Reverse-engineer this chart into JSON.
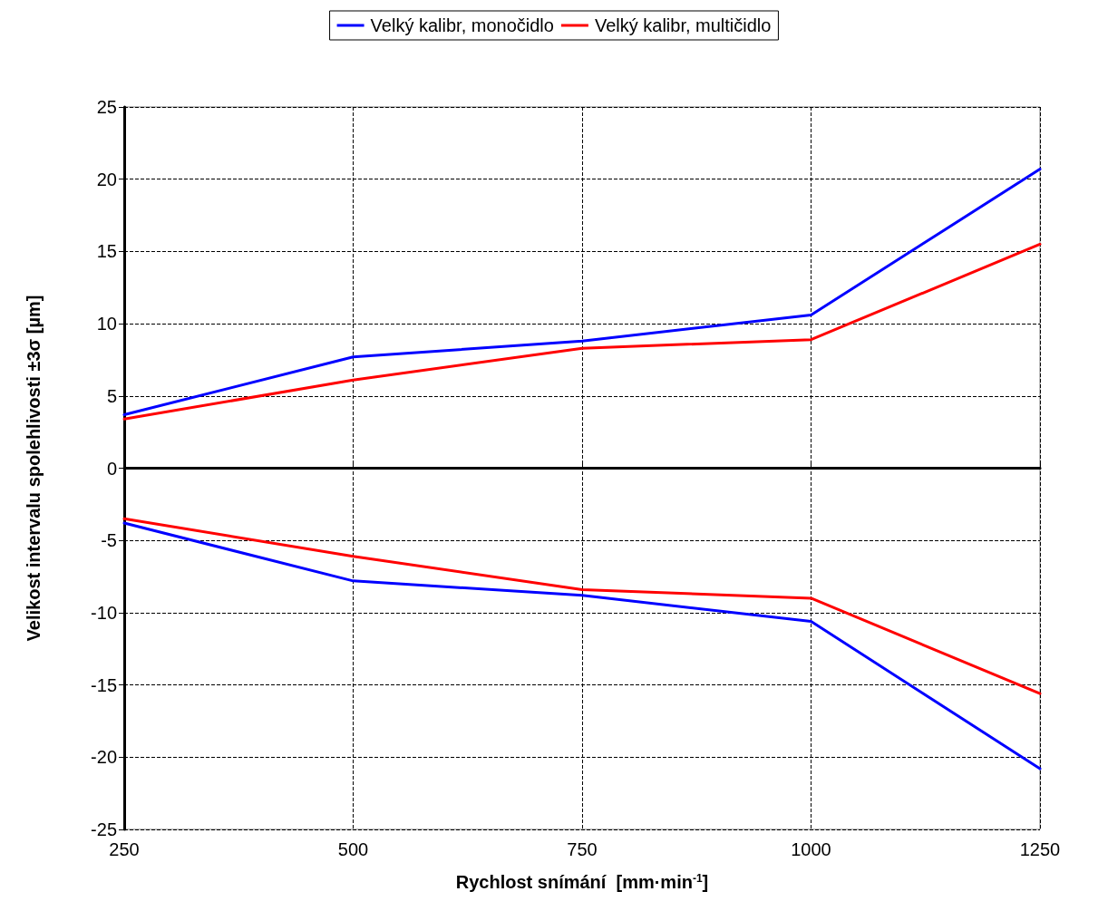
{
  "chart_data": {
    "type": "line",
    "xlabel": "Rychlost snímání  [mm·min$^{-1}$]",
    "ylabel": "Velikost intervalu spolehlivosti ±3σ [µm]",
    "x": [
      250,
      500,
      750,
      1000,
      1250
    ],
    "series": [
      {
        "name": "Velký kalibr, monočidlo",
        "color": "#0000ff",
        "values": [
          3.7,
          7.7,
          8.8,
          10.6,
          20.7
        ]
      },
      {
        "name": "Velký kalibr, multičidlo",
        "color": "#ff0000",
        "values": [
          3.4,
          6.1,
          8.3,
          8.9,
          15.5
        ]
      },
      {
        "color": "#0000ff",
        "values": [
          -3.8,
          -7.8,
          -8.8,
          -10.6,
          -20.8
        ]
      },
      {
        "color": "#ff0000",
        "values": [
          -3.5,
          -6.1,
          -8.4,
          -9.0,
          -15.6
        ]
      }
    ],
    "xlim": [
      250,
      1250
    ],
    "xticks": [
      250,
      500,
      750,
      1000,
      1250
    ],
    "ylim": [
      -25,
      25
    ],
    "yticks": [
      -25,
      -20,
      -15,
      -10,
      -5,
      0,
      5,
      10,
      15,
      20,
      25
    ],
    "grid": true,
    "legend": "top",
    "marker": "none",
    "line_style": "solid"
  }
}
